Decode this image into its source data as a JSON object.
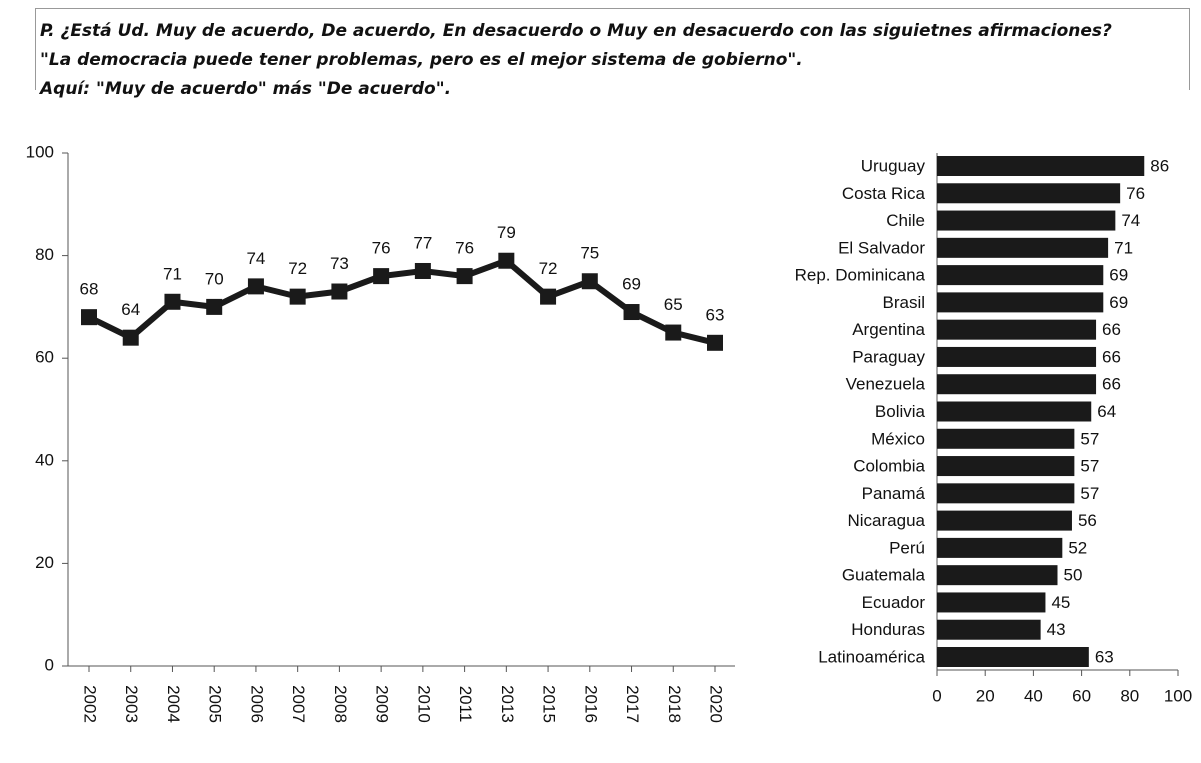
{
  "header": {
    "lines": [
      "P. ¿Está Ud. Muy de acuerdo, De acuerdo, En desacuerdo o Muy en desacuerdo con las siguietnes afirmaciones?",
      "\"La democracia puede tener problemas, pero es el mejor sistema de gobierno\".",
      "Aquí: \"Muy de acuerdo\" más \"De acuerdo\"."
    ]
  },
  "chart_data": [
    {
      "type": "line",
      "color": "#1a1a1a",
      "categories": [
        "2002",
        "2003",
        "2004",
        "2005",
        "2006",
        "2007",
        "2008",
        "2009",
        "2010",
        "2011",
        "2013",
        "2015",
        "2016",
        "2017",
        "2018",
        "2020"
      ],
      "values": [
        68,
        64,
        71,
        70,
        74,
        72,
        73,
        76,
        77,
        76,
        79,
        72,
        75,
        69,
        65,
        63
      ],
      "ylim": [
        0,
        100
      ],
      "yticks": [
        0,
        20,
        40,
        60,
        80,
        100
      ]
    },
    {
      "type": "bar",
      "orientation": "horizontal",
      "color": "#1a1a1a",
      "categories": [
        "Uruguay",
        "Costa Rica",
        "Chile",
        "El Salvador",
        "Rep. Dominicana",
        "Brasil",
        "Argentina",
        "Paraguay",
        "Venezuela",
        "Bolivia",
        "México",
        "Colombia",
        "Panamá",
        "Nicaragua",
        "Perú",
        "Guatemala",
        "Ecuador",
        "Honduras",
        "Latinoamérica"
      ],
      "values": [
        86,
        76,
        74,
        71,
        69,
        69,
        66,
        66,
        66,
        64,
        57,
        57,
        57,
        56,
        52,
        50,
        45,
        43,
        63
      ],
      "xlim": [
        0,
        100
      ],
      "xticks": [
        0,
        20,
        40,
        60,
        80,
        100
      ]
    }
  ]
}
